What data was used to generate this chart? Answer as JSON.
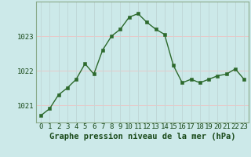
{
  "x": [
    0,
    1,
    2,
    3,
    4,
    5,
    6,
    7,
    8,
    9,
    10,
    11,
    12,
    13,
    14,
    15,
    16,
    17,
    18,
    19,
    20,
    21,
    22,
    23
  ],
  "y": [
    1020.7,
    1020.9,
    1021.3,
    1021.5,
    1021.75,
    1022.2,
    1021.9,
    1022.6,
    1023.0,
    1023.2,
    1023.55,
    1023.65,
    1023.4,
    1023.2,
    1023.05,
    1022.15,
    1021.65,
    1021.75,
    1021.65,
    1021.75,
    1021.85,
    1021.9,
    1022.05,
    1021.75
  ],
  "ylim": [
    1020.5,
    1024.0
  ],
  "yticks": [
    1021,
    1022,
    1023
  ],
  "xticks": [
    0,
    1,
    2,
    3,
    4,
    5,
    6,
    7,
    8,
    9,
    10,
    11,
    12,
    13,
    14,
    15,
    16,
    17,
    18,
    19,
    20,
    21,
    22,
    23
  ],
  "xlabel": "Graphe pression niveau de la mer (hPa)",
  "line_color": "#2d6a2d",
  "marker_color": "#2d6a2d",
  "bg_color": "#cce9e9",
  "grid_color_h": "#e8c8c8",
  "grid_color_v": "#c0d8d8",
  "border_color": "#8aaa8a",
  "xlabel_color": "#1a4a1a",
  "tick_label_color": "#1a4a1a",
  "xlabel_fontsize": 7.5,
  "tick_fontsize": 6.5
}
